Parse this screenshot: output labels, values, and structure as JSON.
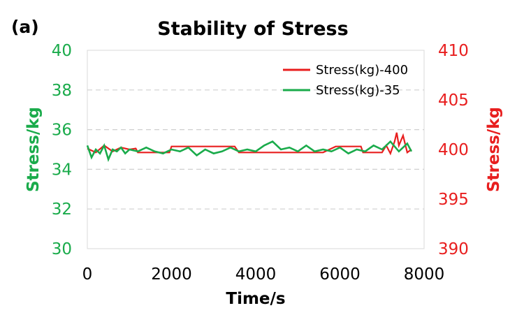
{
  "panel_label": "(a)",
  "chart_data": {
    "type": "line",
    "title": "Stability of Stress",
    "xlabel": "Time/s",
    "ylabel_left": "Stress/kg",
    "ylabel_right": "Stress/kg",
    "xlim": [
      0,
      8000
    ],
    "ylim_left": [
      30,
      40
    ],
    "ylim_right": [
      390,
      410
    ],
    "x_ticks": [
      0,
      2000,
      4000,
      6000,
      8000
    ],
    "y_ticks_left": [
      30,
      32,
      34,
      36,
      38,
      40
    ],
    "y_ticks_right": [
      390,
      395,
      400,
      405,
      410
    ],
    "grid": "horizontal-dashed",
    "legend_position": "top-right",
    "colors": {
      "left_axis": "#1aab4b",
      "right_axis": "#e81e1e",
      "series_400": "#e81e1e",
      "series_35": "#1aab4b"
    },
    "series": [
      {
        "name": "Stress(kg)-400",
        "axis": "right",
        "color": "#e81e1e",
        "x": [
          0,
          200,
          400,
          600,
          800,
          1000,
          1150,
          1200,
          1400,
          1600,
          1800,
          1950,
          2000,
          2300,
          2600,
          2900,
          3200,
          3500,
          3600,
          3800,
          4100,
          4400,
          4700,
          5000,
          5300,
          5600,
          5900,
          6200,
          6500,
          6550,
          6800,
          7000,
          7100,
          7200,
          7300,
          7350,
          7400,
          7500,
          7600,
          7700
        ],
        "values": [
          400.1,
          399.7,
          400.4,
          399.8,
          400.2,
          400.0,
          400.1,
          399.7,
          399.7,
          399.7,
          399.7,
          399.7,
          400.3,
          400.3,
          400.3,
          400.3,
          400.3,
          400.3,
          399.7,
          399.7,
          399.7,
          399.7,
          399.7,
          399.7,
          399.7,
          399.7,
          400.3,
          400.3,
          400.3,
          399.7,
          399.7,
          399.7,
          400.4,
          399.6,
          400.8,
          401.7,
          400.4,
          401.4,
          399.7,
          400.0
        ]
      },
      {
        "name": "Stress(kg)-35",
        "axis": "left",
        "color": "#1aab4b",
        "x": [
          0,
          100,
          200,
          300,
          400,
          500,
          600,
          700,
          800,
          900,
          1000,
          1200,
          1400,
          1600,
          1800,
          2000,
          2200,
          2400,
          2600,
          2800,
          3000,
          3200,
          3400,
          3600,
          3800,
          4000,
          4200,
          4400,
          4600,
          4800,
          5000,
          5200,
          5400,
          5600,
          5800,
          6000,
          6200,
          6400,
          6600,
          6800,
          7000,
          7200,
          7400,
          7600,
          7700
        ],
        "values": [
          35.2,
          34.6,
          35.0,
          34.8,
          35.2,
          34.5,
          35.0,
          34.9,
          35.1,
          34.8,
          35.0,
          34.9,
          35.1,
          34.9,
          34.8,
          35.0,
          34.9,
          35.1,
          34.7,
          35.0,
          34.8,
          34.9,
          35.1,
          34.9,
          35.0,
          34.9,
          35.2,
          35.4,
          35.0,
          35.1,
          34.9,
          35.2,
          34.9,
          35.0,
          34.9,
          35.1,
          34.8,
          35.0,
          34.9,
          35.2,
          35.0,
          35.4,
          34.9,
          35.3,
          34.9
        ]
      }
    ]
  }
}
